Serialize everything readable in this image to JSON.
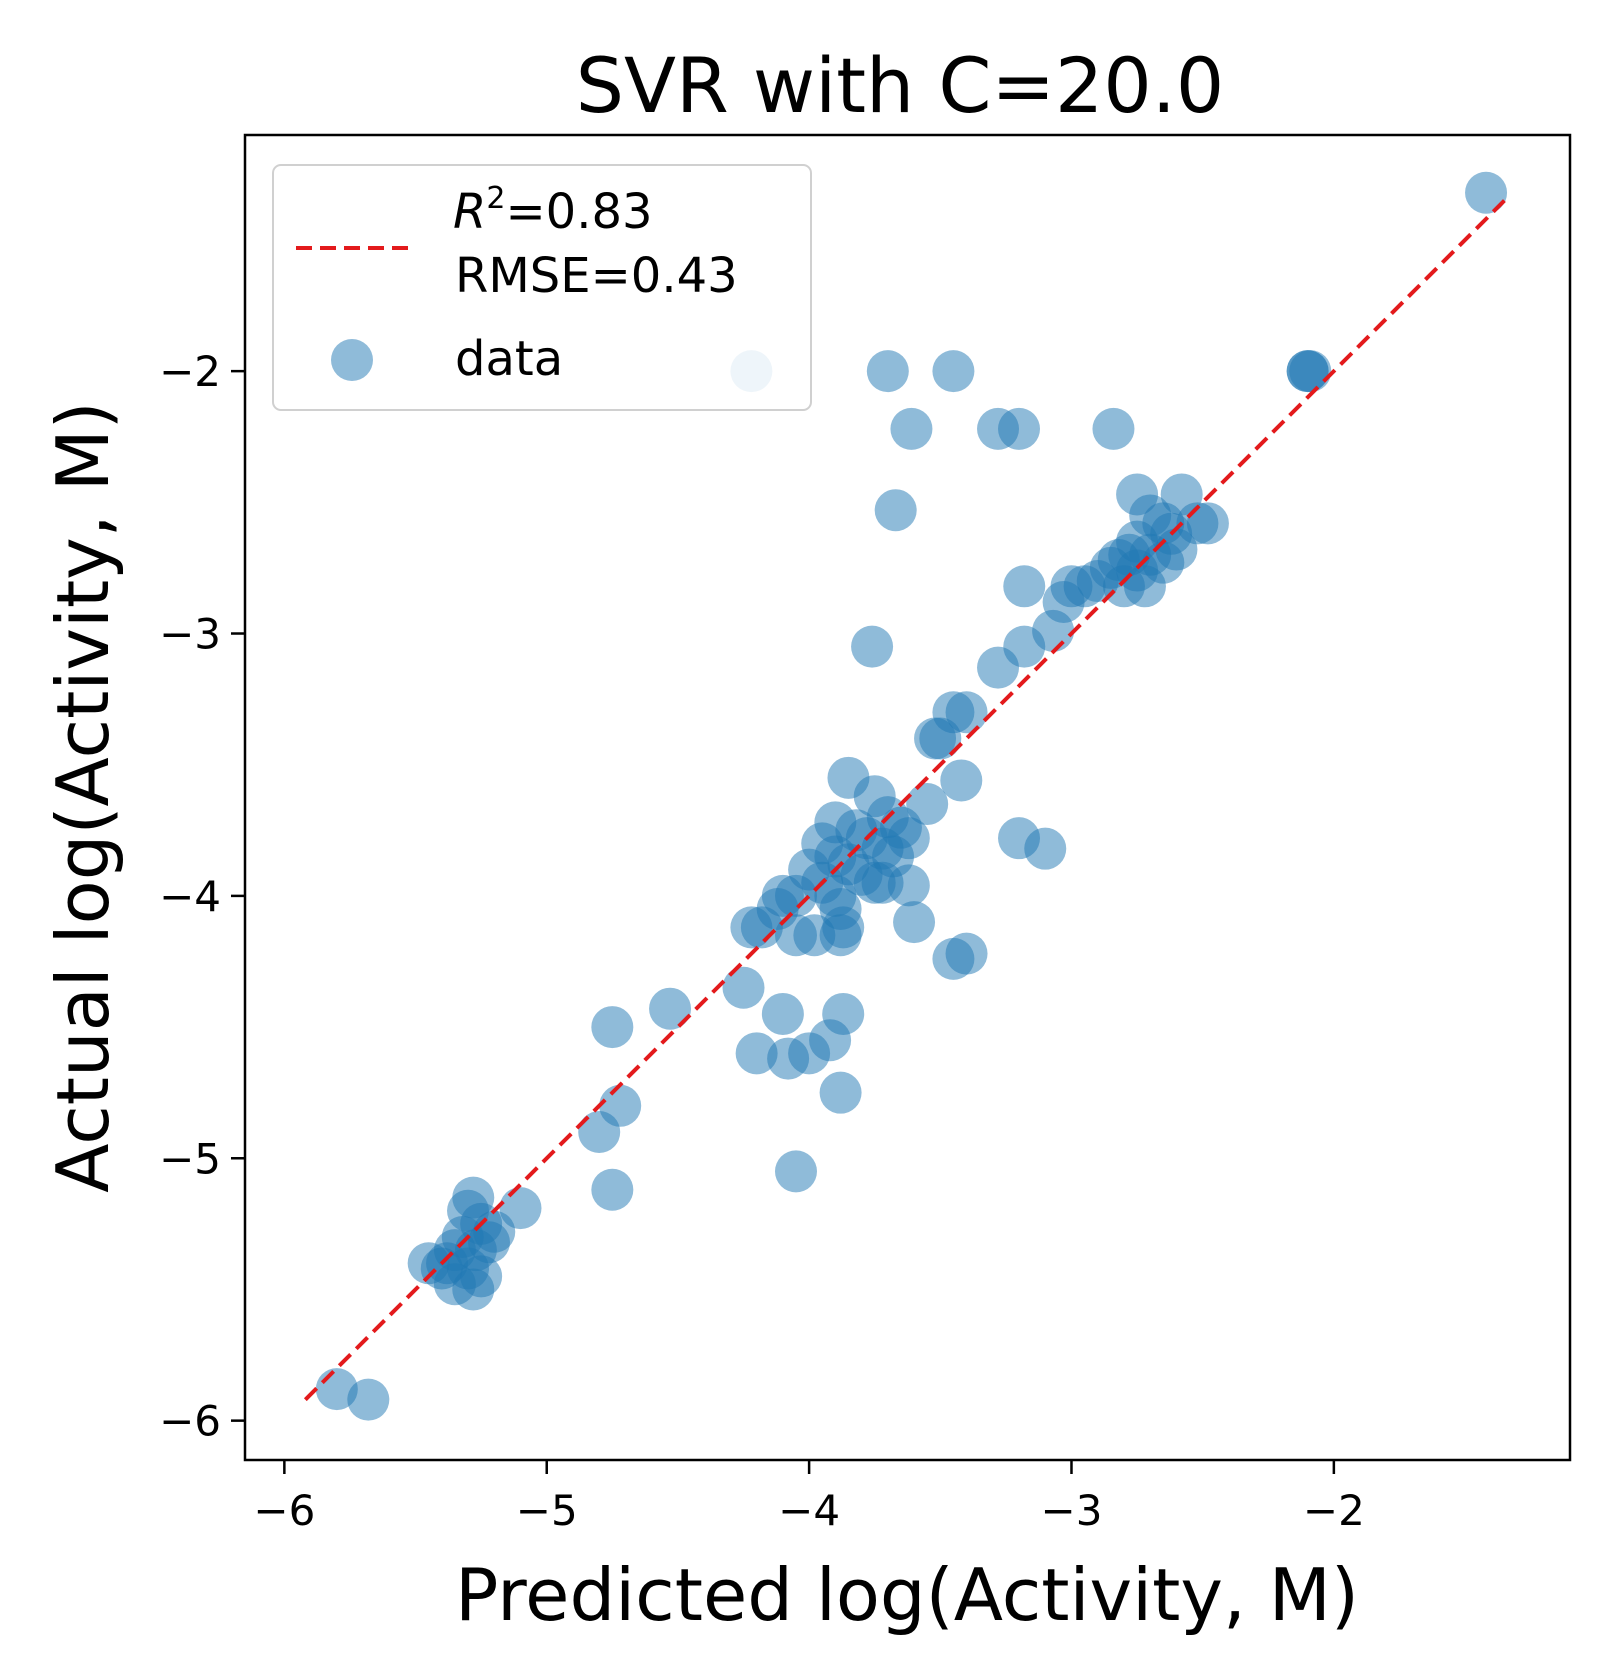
{
  "chart_data": {
    "type": "scatter",
    "title": "SVR with C=20.0",
    "xlabel": "Predicted log(Activity, M)",
    "ylabel": "Actual log(Activity, M)",
    "xlim": [
      -6.15,
      -1.1
    ],
    "ylim": [
      -6.15,
      -1.1
    ],
    "xticks": [
      -6,
      -5,
      -4,
      -3,
      -2
    ],
    "yticks": [
      -6,
      -5,
      -4,
      -3,
      -2
    ],
    "xtick_labels": [
      "−6",
      "−5",
      "−4",
      "−3",
      "−2"
    ],
    "ytick_labels": [
      "−6",
      "−5",
      "−4",
      "−3",
      "−2"
    ],
    "grid": false,
    "legend": {
      "placement": "top-left",
      "r2_symbol": "R",
      "r2_exponent": "2",
      "r2_value": "=0.83",
      "rmse_text": "RMSE=0.43",
      "data_label": "data"
    },
    "fit_line": {
      "name": "fit",
      "color": "#e31a1c",
      "style": "dashed",
      "x": [
        -5.92,
        -1.35
      ],
      "y": [
        -5.92,
        -1.35
      ]
    },
    "series": [
      {
        "name": "data",
        "color": "#1f77b4",
        "opacity": 0.5,
        "points": [
          [
            -1.42,
            -1.32
          ],
          [
            -2.1,
            -2.0
          ],
          [
            -2.1,
            -2.0
          ],
          [
            -2.09,
            -2.0
          ],
          [
            -4.22,
            -2.0
          ],
          [
            -3.7,
            -2.0
          ],
          [
            -3.45,
            -2.0
          ],
          [
            -3.61,
            -2.22
          ],
          [
            -3.28,
            -2.22
          ],
          [
            -3.2,
            -2.22
          ],
          [
            -2.84,
            -2.22
          ],
          [
            -3.67,
            -2.53
          ],
          [
            -2.75,
            -2.47
          ],
          [
            -2.58,
            -2.47
          ],
          [
            -2.7,
            -2.55
          ],
          [
            -2.65,
            -2.58
          ],
          [
            -2.62,
            -2.62
          ],
          [
            -2.52,
            -2.58
          ],
          [
            -2.48,
            -2.58
          ],
          [
            -2.75,
            -2.65
          ],
          [
            -2.78,
            -2.7
          ],
          [
            -2.82,
            -2.72
          ],
          [
            -2.7,
            -2.7
          ],
          [
            -2.6,
            -2.68
          ],
          [
            -2.85,
            -2.75
          ],
          [
            -2.75,
            -2.76
          ],
          [
            -2.65,
            -2.73
          ],
          [
            -2.9,
            -2.8
          ],
          [
            -2.8,
            -2.82
          ],
          [
            -2.72,
            -2.82
          ],
          [
            -2.95,
            -2.82
          ],
          [
            -3.0,
            -2.82
          ],
          [
            -3.03,
            -2.88
          ],
          [
            -3.18,
            -2.82
          ],
          [
            -3.07,
            -2.99
          ],
          [
            -3.18,
            -3.05
          ],
          [
            -3.28,
            -3.13
          ],
          [
            -3.4,
            -3.3
          ],
          [
            -3.45,
            -3.3
          ],
          [
            -3.52,
            -3.4
          ],
          [
            -3.5,
            -3.4
          ],
          [
            -3.42,
            -3.56
          ],
          [
            -3.55,
            -3.65
          ],
          [
            -3.76,
            -3.05
          ],
          [
            -3.85,
            -3.55
          ],
          [
            -3.75,
            -3.62
          ],
          [
            -3.7,
            -3.7
          ],
          [
            -3.65,
            -3.74
          ],
          [
            -3.62,
            -3.78
          ],
          [
            -3.9,
            -3.72
          ],
          [
            -3.82,
            -3.75
          ],
          [
            -3.78,
            -3.78
          ],
          [
            -3.72,
            -3.82
          ],
          [
            -3.68,
            -3.85
          ],
          [
            -3.95,
            -3.8
          ],
          [
            -3.9,
            -3.85
          ],
          [
            -3.85,
            -3.88
          ],
          [
            -3.8,
            -3.92
          ],
          [
            -3.75,
            -3.95
          ],
          [
            -4.0,
            -3.9
          ],
          [
            -3.95,
            -3.95
          ],
          [
            -3.9,
            -4.0
          ],
          [
            -3.88,
            -4.05
          ],
          [
            -3.72,
            -3.95
          ],
          [
            -3.62,
            -3.96
          ],
          [
            -4.05,
            -4.0
          ],
          [
            -4.1,
            -4.0
          ],
          [
            -4.12,
            -4.05
          ],
          [
            -3.6,
            -4.1
          ],
          [
            -4.22,
            -4.12
          ],
          [
            -4.18,
            -4.12
          ],
          [
            -4.05,
            -4.15
          ],
          [
            -3.98,
            -4.15
          ],
          [
            -3.88,
            -4.15
          ],
          [
            -3.87,
            -4.12
          ],
          [
            -3.45,
            -4.24
          ],
          [
            -3.4,
            -4.22
          ],
          [
            -4.25,
            -4.35
          ],
          [
            -4.1,
            -4.45
          ],
          [
            -3.87,
            -4.45
          ],
          [
            -4.53,
            -4.43
          ],
          [
            -4.75,
            -4.5
          ],
          [
            -4.2,
            -4.6
          ],
          [
            -4.08,
            -4.62
          ],
          [
            -4.0,
            -4.6
          ],
          [
            -3.92,
            -4.55
          ],
          [
            -3.88,
            -4.75
          ],
          [
            -4.72,
            -4.8
          ],
          [
            -4.8,
            -4.9
          ],
          [
            -4.75,
            -5.12
          ],
          [
            -4.05,
            -5.05
          ],
          [
            -3.2,
            -3.78
          ],
          [
            -3.1,
            -3.82
          ],
          [
            -5.28,
            -5.15
          ],
          [
            -5.3,
            -5.2
          ],
          [
            -5.25,
            -5.25
          ],
          [
            -5.32,
            -5.3
          ],
          [
            -5.27,
            -5.35
          ],
          [
            -5.22,
            -5.32
          ],
          [
            -5.2,
            -5.28
          ],
          [
            -5.35,
            -5.35
          ],
          [
            -5.38,
            -5.4
          ],
          [
            -5.3,
            -5.42
          ],
          [
            -5.25,
            -5.45
          ],
          [
            -5.4,
            -5.42
          ],
          [
            -5.45,
            -5.4
          ],
          [
            -5.35,
            -5.48
          ],
          [
            -5.28,
            -5.5
          ],
          [
            -5.1,
            -5.19
          ],
          [
            -5.8,
            -5.88
          ],
          [
            -5.68,
            -5.92
          ]
        ]
      }
    ]
  }
}
